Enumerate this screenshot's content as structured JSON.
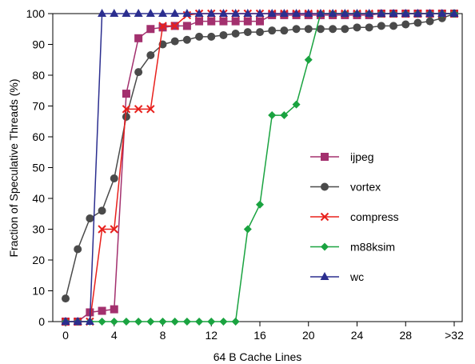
{
  "chart_data": {
    "type": "line",
    "xlabel": "64 B Cache Lines",
    "ylabel": "Fraction of Speculative Threads (%)",
    "xlim": [
      0,
      32
    ],
    "ylim": [
      0,
      100
    ],
    "x_ticks": [
      {
        "value": 0,
        "label": "0"
      },
      {
        "value": 4,
        "label": "4"
      },
      {
        "value": 8,
        "label": "8"
      },
      {
        "value": 12,
        "label": "12"
      },
      {
        "value": 16,
        "label": "16"
      },
      {
        "value": 20,
        "label": "20"
      },
      {
        "value": 24,
        "label": "24"
      },
      {
        "value": 28,
        "label": "28"
      },
      {
        "value": 32,
        "label": ">32"
      }
    ],
    "y_ticks": [
      0,
      10,
      20,
      30,
      40,
      50,
      60,
      70,
      80,
      90,
      100
    ],
    "grid": false,
    "legend_position": "right-middle",
    "series": [
      {
        "name": "ijpeg",
        "color": "#a3306e",
        "marker": "square",
        "x": [
          0,
          1,
          2,
          3,
          4,
          5,
          6,
          7,
          8,
          9,
          10,
          11,
          12,
          13,
          14,
          15,
          16,
          17,
          18,
          19,
          20,
          21,
          22,
          23,
          24,
          25,
          26,
          27,
          28,
          29,
          30,
          31,
          32
        ],
        "y": [
          0,
          0,
          3,
          3.5,
          4,
          74,
          92,
          95,
          95.5,
          96,
          96,
          97.5,
          97.5,
          97.5,
          97.5,
          97.5,
          97.5,
          99.5,
          99.5,
          99.5,
          99.5,
          99.5,
          99.5,
          99.5,
          99.5,
          99.5,
          100,
          100,
          100,
          100,
          100,
          100,
          100
        ]
      },
      {
        "name": "vortex",
        "color": "#4a4a4a",
        "marker": "circle",
        "x": [
          0,
          1,
          2,
          3,
          4,
          5,
          6,
          7,
          8,
          9,
          10,
          11,
          12,
          13,
          14,
          15,
          16,
          17,
          18,
          19,
          20,
          21,
          22,
          23,
          24,
          25,
          26,
          27,
          28,
          29,
          30,
          31,
          32
        ],
        "y": [
          7.5,
          23.5,
          33.5,
          36,
          46.5,
          66.5,
          81,
          86.5,
          90,
          91,
          91.5,
          92.5,
          92.5,
          93,
          93.5,
          94,
          94,
          94.5,
          94.5,
          95,
          95,
          95,
          95,
          95,
          95.5,
          95.5,
          96,
          96,
          96.5,
          97,
          97.5,
          98.5,
          100
        ]
      },
      {
        "name": "compress",
        "color": "#e8201c",
        "marker": "x",
        "x": [
          0,
          1,
          2,
          3,
          4,
          5,
          6,
          7,
          8,
          9,
          10,
          11,
          12,
          13,
          14,
          15,
          16,
          17,
          18,
          19,
          20,
          21,
          22,
          23,
          24,
          25,
          26,
          27,
          28,
          29,
          30,
          31,
          32
        ],
        "y": [
          0,
          0,
          0,
          30,
          30,
          69,
          69,
          69,
          96,
          96,
          99.5,
          100,
          100,
          100,
          100,
          100,
          100,
          100,
          100,
          100,
          100,
          100,
          100,
          100,
          100,
          100,
          100,
          100,
          100,
          100,
          100,
          100,
          100
        ]
      },
      {
        "name": "m88ksim",
        "color": "#1aa340",
        "marker": "diamond",
        "x": [
          0,
          1,
          2,
          3,
          4,
          5,
          6,
          7,
          8,
          9,
          10,
          11,
          12,
          13,
          14,
          15,
          16,
          17,
          18,
          19,
          20,
          21,
          22,
          23,
          24,
          25,
          26,
          27,
          28,
          29,
          30,
          31,
          32
        ],
        "y": [
          0,
          0,
          0,
          0,
          0,
          0,
          0,
          0,
          0,
          0,
          0,
          0,
          0,
          0,
          0,
          30,
          38,
          67,
          67,
          70.5,
          85,
          100,
          100,
          100,
          100,
          100,
          100,
          100,
          100,
          100,
          100,
          100,
          100
        ]
      },
      {
        "name": "wc",
        "color": "#2b2e8f",
        "marker": "triangle",
        "x": [
          0,
          1,
          2,
          3,
          4,
          5,
          6,
          7,
          8,
          9,
          10,
          11,
          12,
          13,
          14,
          15,
          16,
          17,
          18,
          19,
          20,
          21,
          22,
          23,
          24,
          25,
          26,
          27,
          28,
          29,
          30,
          31,
          32
        ],
        "y": [
          0,
          0,
          0,
          100,
          100,
          100,
          100,
          100,
          100,
          100,
          100,
          100,
          100,
          100,
          100,
          100,
          100,
          100,
          100,
          100,
          100,
          100,
          100,
          100,
          100,
          100,
          100,
          100,
          100,
          100,
          100,
          100,
          100
        ]
      }
    ]
  }
}
